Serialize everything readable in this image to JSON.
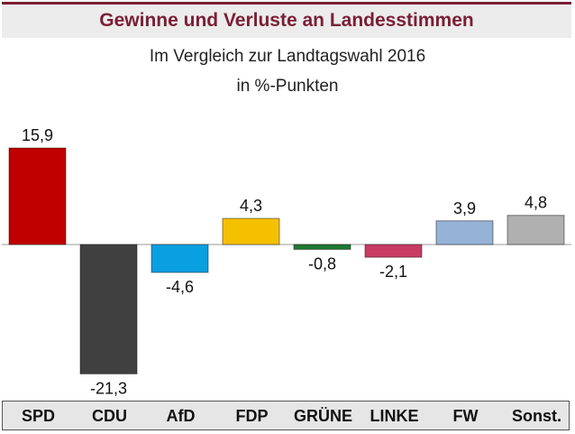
{
  "header": {
    "title": "Gewinne und Verluste an Landesstimmen"
  },
  "chart_data": {
    "type": "bar",
    "title": "Gewinne und Verluste an Landesstimmen",
    "subtitle": [
      "Im Vergleich zur Landtagswahl 2016",
      "in %-Punkten"
    ],
    "categories": [
      "SPD",
      "CDU",
      "AfD",
      "FDP",
      "GRÜNE",
      "LINKE",
      "FW",
      "Sonst."
    ],
    "values": [
      15.9,
      -21.3,
      -4.6,
      4.3,
      -0.8,
      -2.1,
      3.9,
      4.8
    ],
    "labels": [
      "15,9",
      "-21,3",
      "-4,6",
      "4,3",
      "-0,8",
      "-2,1",
      "3,9",
      "4,8"
    ],
    "colors": [
      "#c00000",
      "#404040",
      "#0aa0e0",
      "#f5c000",
      "#1e7a30",
      "#c83c64",
      "#95b3d7",
      "#b0b0b0"
    ],
    "xlabel": "",
    "ylabel": "",
    "ylim": [
      -21.3,
      15.9
    ],
    "grid": false,
    "legend": "none"
  }
}
